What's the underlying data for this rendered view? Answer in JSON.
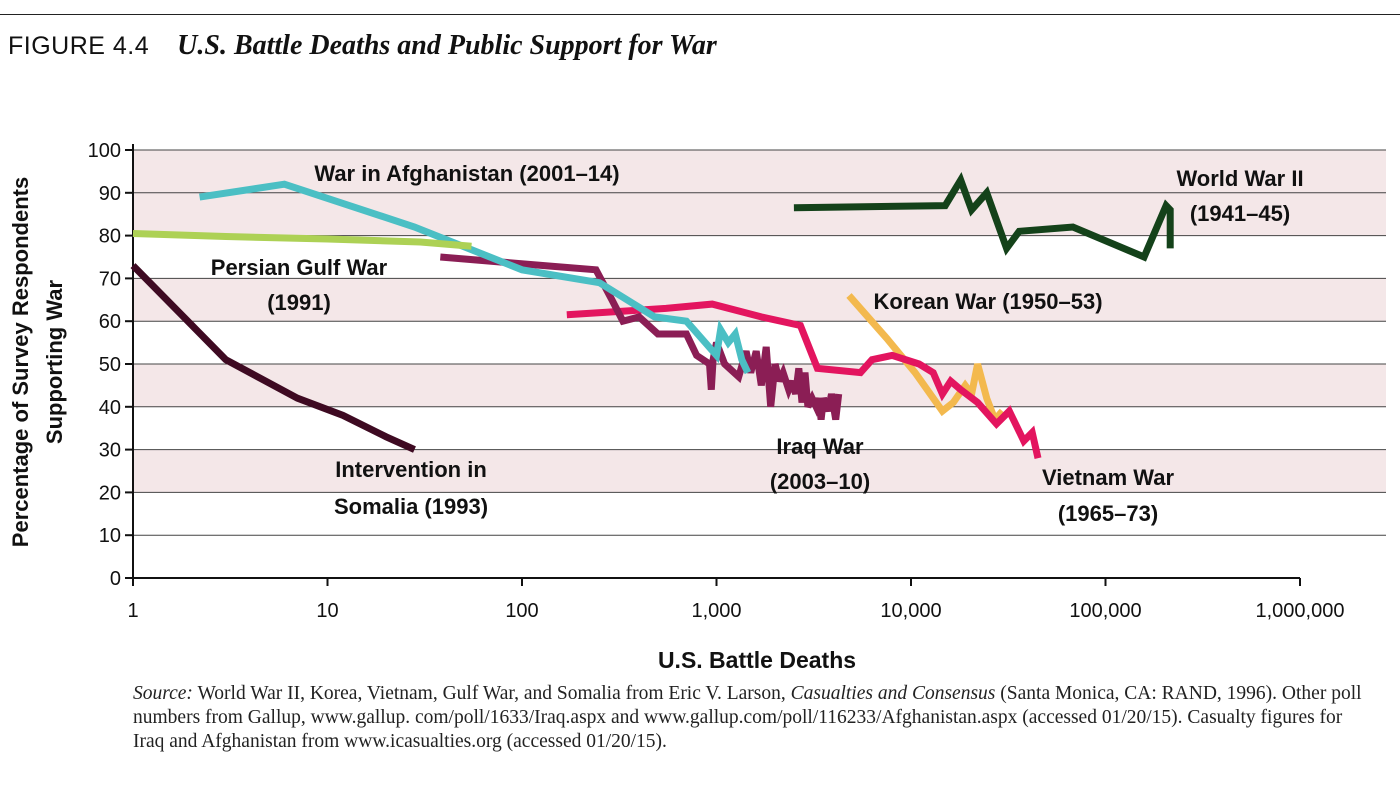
{
  "figure": {
    "label": "FIGURE 4.4",
    "title": "U.S. Battle Deaths and Public Support for War"
  },
  "source": {
    "prefix": "Source:",
    "text_1": " World War II, Korea, Vietnam, Gulf War, and Somalia from Eric V. Larson, ",
    "book": "Casualties and Consensus",
    "text_2": " (Santa Monica, CA: RAND, 1996). Other poll numbers from Gallup, www.gallup. com/poll/1633/Iraq.aspx and www.gallup.com/poll/116233/Afghanistan.aspx (accessed 01/20/15). Casualty figures for Iraq and Afghanistan from www.icasualties.org (accessed 01/20/15)."
  },
  "colors": {
    "band": "#f4e7e8",
    "grid": "#444444",
    "axis": "#111111",
    "text": "#111111"
  },
  "chart_data": {
    "type": "line",
    "xscale": "log",
    "xlabel": "U.S. Battle Deaths",
    "ylabel_lines": [
      "Percentage of Survey Respondents",
      "Supporting War"
    ],
    "xlim": [
      1,
      1000000
    ],
    "ylim": [
      0,
      100
    ],
    "xticks": [
      1,
      10,
      100,
      1000,
      10000,
      100000,
      1000000
    ],
    "xtick_labels": [
      "1",
      "10",
      "100",
      "1,000",
      "10,000",
      "100,000",
      "1,000,000"
    ],
    "yticks": [
      0,
      10,
      20,
      30,
      40,
      50,
      60,
      70,
      80,
      90,
      100
    ],
    "ytick_labels": [
      "0",
      "10",
      "20",
      "30",
      "40",
      "50",
      "60",
      "70",
      "80",
      "90",
      "100"
    ],
    "grid": true,
    "shaded_bands": [
      [
        20,
        30
      ],
      [
        40,
        50
      ],
      [
        60,
        70
      ],
      [
        80,
        90
      ],
      [
        90,
        100
      ]
    ],
    "series": [
      {
        "name": "World War II",
        "label_lines": [
          "World War II",
          "(1941–45)"
        ],
        "color": "#14421a",
        "points": [
          [
            2500,
            86.5
          ],
          [
            15000,
            87
          ],
          [
            18000,
            93
          ],
          [
            20500,
            86
          ],
          [
            24500,
            90
          ],
          [
            31000,
            77
          ],
          [
            36000,
            81
          ],
          [
            68000,
            82
          ],
          [
            158000,
            75
          ],
          [
            205000,
            87
          ],
          [
            215000,
            86
          ],
          [
            215000,
            77
          ]
        ]
      },
      {
        "name": "Korean War",
        "label_lines": [
          "Korean War (1950–53)"
        ],
        "color": "#f3b94e",
        "points": [
          [
            4800,
            66
          ],
          [
            7500,
            56
          ],
          [
            10500,
            48
          ],
          [
            14500,
            39
          ],
          [
            16500,
            41
          ],
          [
            19000,
            45
          ],
          [
            20500,
            43
          ],
          [
            22000,
            50
          ],
          [
            24500,
            42
          ],
          [
            27000,
            37
          ],
          [
            29500,
            39
          ]
        ]
      },
      {
        "name": "Vietnam War",
        "label_lines": [
          "Vietnam War",
          "(1965–73)"
        ],
        "color": "#e3155f",
        "points": [
          [
            170,
            61.5
          ],
          [
            550,
            63
          ],
          [
            950,
            64
          ],
          [
            1700,
            61
          ],
          [
            2700,
            59
          ],
          [
            3300,
            49
          ],
          [
            5500,
            48
          ],
          [
            6300,
            51
          ],
          [
            8000,
            52
          ],
          [
            11000,
            50
          ],
          [
            13000,
            48
          ],
          [
            14500,
            43
          ],
          [
            16000,
            46
          ],
          [
            18000,
            44
          ],
          [
            22000,
            41
          ],
          [
            27500,
            36
          ],
          [
            32000,
            39
          ],
          [
            38000,
            32
          ],
          [
            42000,
            34
          ],
          [
            45000,
            28
          ]
        ]
      },
      {
        "name": "Iraq War",
        "label_lines": [
          "Iraq War",
          "(2003–10)"
        ],
        "color": "#8b1e55",
        "points": [
          [
            38,
            75
          ],
          [
            130,
            73
          ],
          [
            240,
            72
          ],
          [
            290,
            65
          ],
          [
            330,
            60
          ],
          [
            400,
            61
          ],
          [
            500,
            57
          ],
          [
            700,
            57
          ],
          [
            790,
            52
          ],
          [
            920,
            50
          ],
          [
            940,
            44
          ],
          [
            960,
            51
          ],
          [
            1000,
            55
          ],
          [
            1100,
            50
          ],
          [
            1300,
            47
          ],
          [
            1420,
            53
          ],
          [
            1500,
            48
          ],
          [
            1600,
            53
          ],
          [
            1700,
            45
          ],
          [
            1800,
            54
          ],
          [
            1900,
            40
          ],
          [
            2000,
            50
          ],
          [
            2100,
            46
          ],
          [
            2200,
            48
          ],
          [
            2350,
            44
          ],
          [
            2450,
            46
          ],
          [
            2550,
            43
          ],
          [
            2650,
            49
          ],
          [
            2750,
            41
          ],
          [
            2850,
            48
          ],
          [
            2950,
            40
          ],
          [
            3100,
            42
          ],
          [
            3250,
            40
          ],
          [
            3350,
            42
          ],
          [
            3450,
            37
          ],
          [
            3550,
            42
          ],
          [
            3750,
            39
          ],
          [
            3900,
            43
          ],
          [
            4100,
            37
          ],
          [
            4250,
            43
          ]
        ]
      },
      {
        "name": "War in Afghanistan",
        "label_lines": [
          "War in Afghanistan (2001–14)"
        ],
        "color": "#4bbfc4",
        "points": [
          [
            2.2,
            89
          ],
          [
            6,
            92
          ],
          [
            28,
            82
          ],
          [
            100,
            72
          ],
          [
            250,
            69
          ],
          [
            480,
            61
          ],
          [
            700,
            60
          ],
          [
            1000,
            52
          ],
          [
            1050,
            58
          ],
          [
            1150,
            55
          ],
          [
            1250,
            57
          ],
          [
            1350,
            51
          ],
          [
            1450,
            48
          ]
        ]
      },
      {
        "name": "Persian Gulf War",
        "label_lines": [
          "Persian Gulf War",
          "(1991)"
        ],
        "color": "#add155",
        "points": [
          [
            1,
            80.5
          ],
          [
            3,
            79.8
          ],
          [
            10,
            79.2
          ],
          [
            30,
            78.5
          ],
          [
            55,
            77.5
          ]
        ]
      },
      {
        "name": "Intervention in Somalia",
        "label_lines": [
          "Intervention in",
          "Somalia (1993)"
        ],
        "color": "#3e0a22",
        "points": [
          [
            1,
            73
          ],
          [
            3,
            51
          ],
          [
            7,
            42
          ],
          [
            12,
            38
          ],
          [
            20,
            33
          ],
          [
            28,
            30
          ]
        ]
      }
    ]
  }
}
